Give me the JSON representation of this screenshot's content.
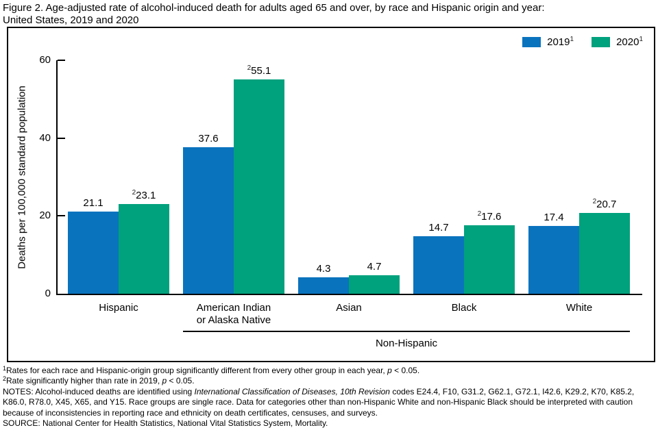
{
  "title": {
    "line1": "Figure 2. Age-adjusted rate of alcohol-induced death for adults aged 65 and over, by race and Hispanic origin and year:",
    "line2": "United States, 2019 and 2020"
  },
  "colors": {
    "bar_2019": "#0a73be",
    "bar_2020": "#00a17d",
    "axis": "#000000"
  },
  "chart_data": {
    "type": "bar",
    "title": "Age-adjusted rate of alcohol-induced death for adults aged 65 and over, by race and Hispanic origin and year: United States, 2019 and 2020",
    "ylabel": "Deaths per 100,000 standard population",
    "xlabel": "",
    "ylim": [
      0,
      60
    ],
    "yticks": [
      0,
      20,
      40,
      60
    ],
    "grid": false,
    "legend_position": "top-right",
    "categories": [
      "Hispanic",
      "American Indian or Alaska Native",
      "Asian",
      "Black",
      "White"
    ],
    "category_label_lines": [
      [
        "Hispanic"
      ],
      [
        "American Indian",
        "or Alaska Native"
      ],
      [
        "Asian"
      ],
      [
        "Black"
      ],
      [
        "White"
      ]
    ],
    "series": [
      {
        "name": "2019",
        "name_superscript": "1",
        "color": "#0a73be",
        "values": [
          21.1,
          37.6,
          4.3,
          14.7,
          17.4
        ],
        "value_superscripts": [
          "",
          "",
          "",
          "",
          ""
        ]
      },
      {
        "name": "2020",
        "name_superscript": "1",
        "color": "#00a17d",
        "values": [
          23.1,
          55.1,
          4.7,
          17.6,
          20.7
        ],
        "value_superscripts": [
          "2",
          "2",
          "",
          "2",
          "2"
        ]
      }
    ],
    "group_bracket": {
      "label": "Non-Hispanic",
      "from_category_index": 1,
      "to_category_index": 4
    }
  },
  "footnotes": [
    {
      "segments": [
        {
          "superscript": "1"
        },
        {
          "text": "Rates for each race and Hispanic-origin group significantly different from every other group in each year, "
        },
        {
          "text": "p",
          "italic": true
        },
        {
          "text": " < 0.05."
        }
      ]
    },
    {
      "segments": [
        {
          "superscript": "2"
        },
        {
          "text": "Rate significantly higher than rate in 2019, "
        },
        {
          "text": "p",
          "italic": true
        },
        {
          "text": " < 0.05."
        }
      ]
    },
    {
      "segments": [
        {
          "text": "NOTES: Alcohol-induced deaths are identified using "
        },
        {
          "text": "International Classification of Diseases, 10th Revision",
          "italic": true
        },
        {
          "text": " codes E24.4, F10, G31.2, G62.1, G72.1, I42.6, K29.2, K70, K85.2, K86.0, R78.0, X45, X65, and Y15. Race groups are single race. Data for categories other than non-Hispanic White and non-Hispanic Black should be interpreted with caution because of inconsistencies in reporting race and ethnicity on death certificates, censuses, and surveys."
        }
      ]
    },
    {
      "segments": [
        {
          "text": "SOURCE: National Center for Health Statistics, National Vital Statistics System, Mortality."
        }
      ]
    }
  ]
}
